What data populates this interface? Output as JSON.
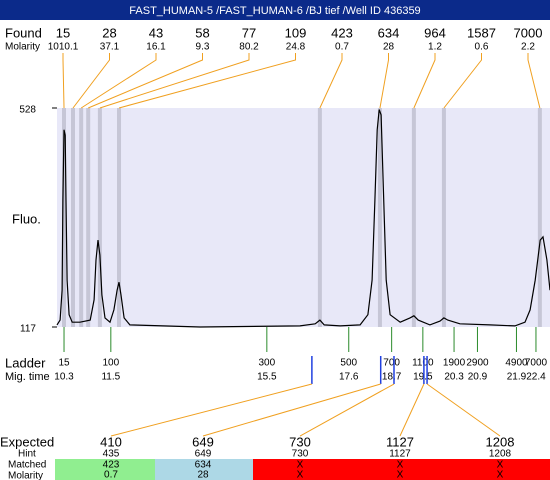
{
  "header": {
    "title": "FAST_HUMAN-5 /FAST_HUMAN-6 /BJ tief /Well ID 436359"
  },
  "found": {
    "label": "Found",
    "molarity_label": "Molarity",
    "sizes": [
      15,
      28,
      43,
      58,
      77,
      109,
      423,
      634,
      964,
      1587,
      7000
    ],
    "molarity": [
      1010.1,
      37.1,
      16.1,
      9.3,
      80.2,
      24.8,
      0.7,
      28,
      1.2,
      0.6,
      2.2
    ],
    "times": [
      10.3,
      10.53,
      10.74,
      10.92,
      11.22,
      11.71,
      16.86,
      18.4,
      19.27,
      20.04,
      22.5
    ]
  },
  "chart_data": {
    "type": "electropherogram",
    "y_label": "Fluo.",
    "ylim": [
      117,
      528
    ],
    "yticks": [
      117,
      528
    ],
    "xlim": [
      10.12,
      22.76
    ],
    "color": "#000000",
    "trace": {
      "x": [
        10.12,
        10.2,
        10.25,
        10.27,
        10.3,
        10.33,
        10.35,
        10.38,
        10.43,
        10.51,
        10.71,
        10.97,
        11.07,
        11.12,
        11.17,
        11.22,
        11.27,
        11.35,
        11.48,
        11.58,
        11.66,
        11.71,
        11.76,
        11.84,
        11.99,
        13.79,
        16.35,
        16.74,
        16.86,
        16.97,
        17.38,
        17.89,
        18.09,
        18.2,
        18.27,
        18.33,
        18.38,
        18.43,
        18.48,
        18.56,
        18.66,
        18.92,
        19.17,
        19.27,
        19.38,
        19.68,
        19.94,
        20.04,
        20.14,
        20.45,
        21.22,
        21.86,
        22.12,
        22.25,
        22.38,
        22.51,
        22.58,
        22.68,
        22.76
      ],
      "values": [
        121,
        130,
        186,
        355,
        487,
        477,
        355,
        205,
        140,
        126,
        126,
        130,
        168,
        243,
        280,
        252,
        177,
        134,
        126,
        149,
        186,
        201,
        177,
        134,
        121,
        117,
        119,
        123,
        130,
        121,
        119,
        121,
        140,
        205,
        355,
        487,
        525,
        515,
        393,
        205,
        140,
        126,
        134,
        138,
        130,
        121,
        128,
        134,
        130,
        123,
        121,
        119,
        126,
        149,
        205,
        280,
        286,
        243,
        186
      ]
    }
  },
  "ladder": {
    "label": "Ladder",
    "time_label": "Mig. time",
    "sizes": [
      15,
      100,
      300,
      500,
      700,
      1100,
      1900,
      2900,
      4900,
      7000
    ],
    "times": [
      10.3,
      11.5,
      15.5,
      17.6,
      18.7,
      19.5,
      20.3,
      20.9,
      21.9,
      22.4
    ]
  },
  "expected": {
    "label": "Expected",
    "hint_label": "Hint",
    "matched_label": "Matched",
    "molarity_label": "Molarity",
    "values": [
      410,
      649,
      730,
      1127,
      1208
    ],
    "hints": [
      435,
      649,
      730,
      1127,
      1208
    ],
    "matched": [
      "423",
      "634",
      "X",
      "X",
      "X"
    ],
    "molarity": [
      "0.7",
      "28",
      "X",
      "X",
      "X"
    ],
    "colors": [
      "#90ee90",
      "#add8e6",
      "#ff0000",
      "#ff0000",
      "#ff0000"
    ]
  }
}
